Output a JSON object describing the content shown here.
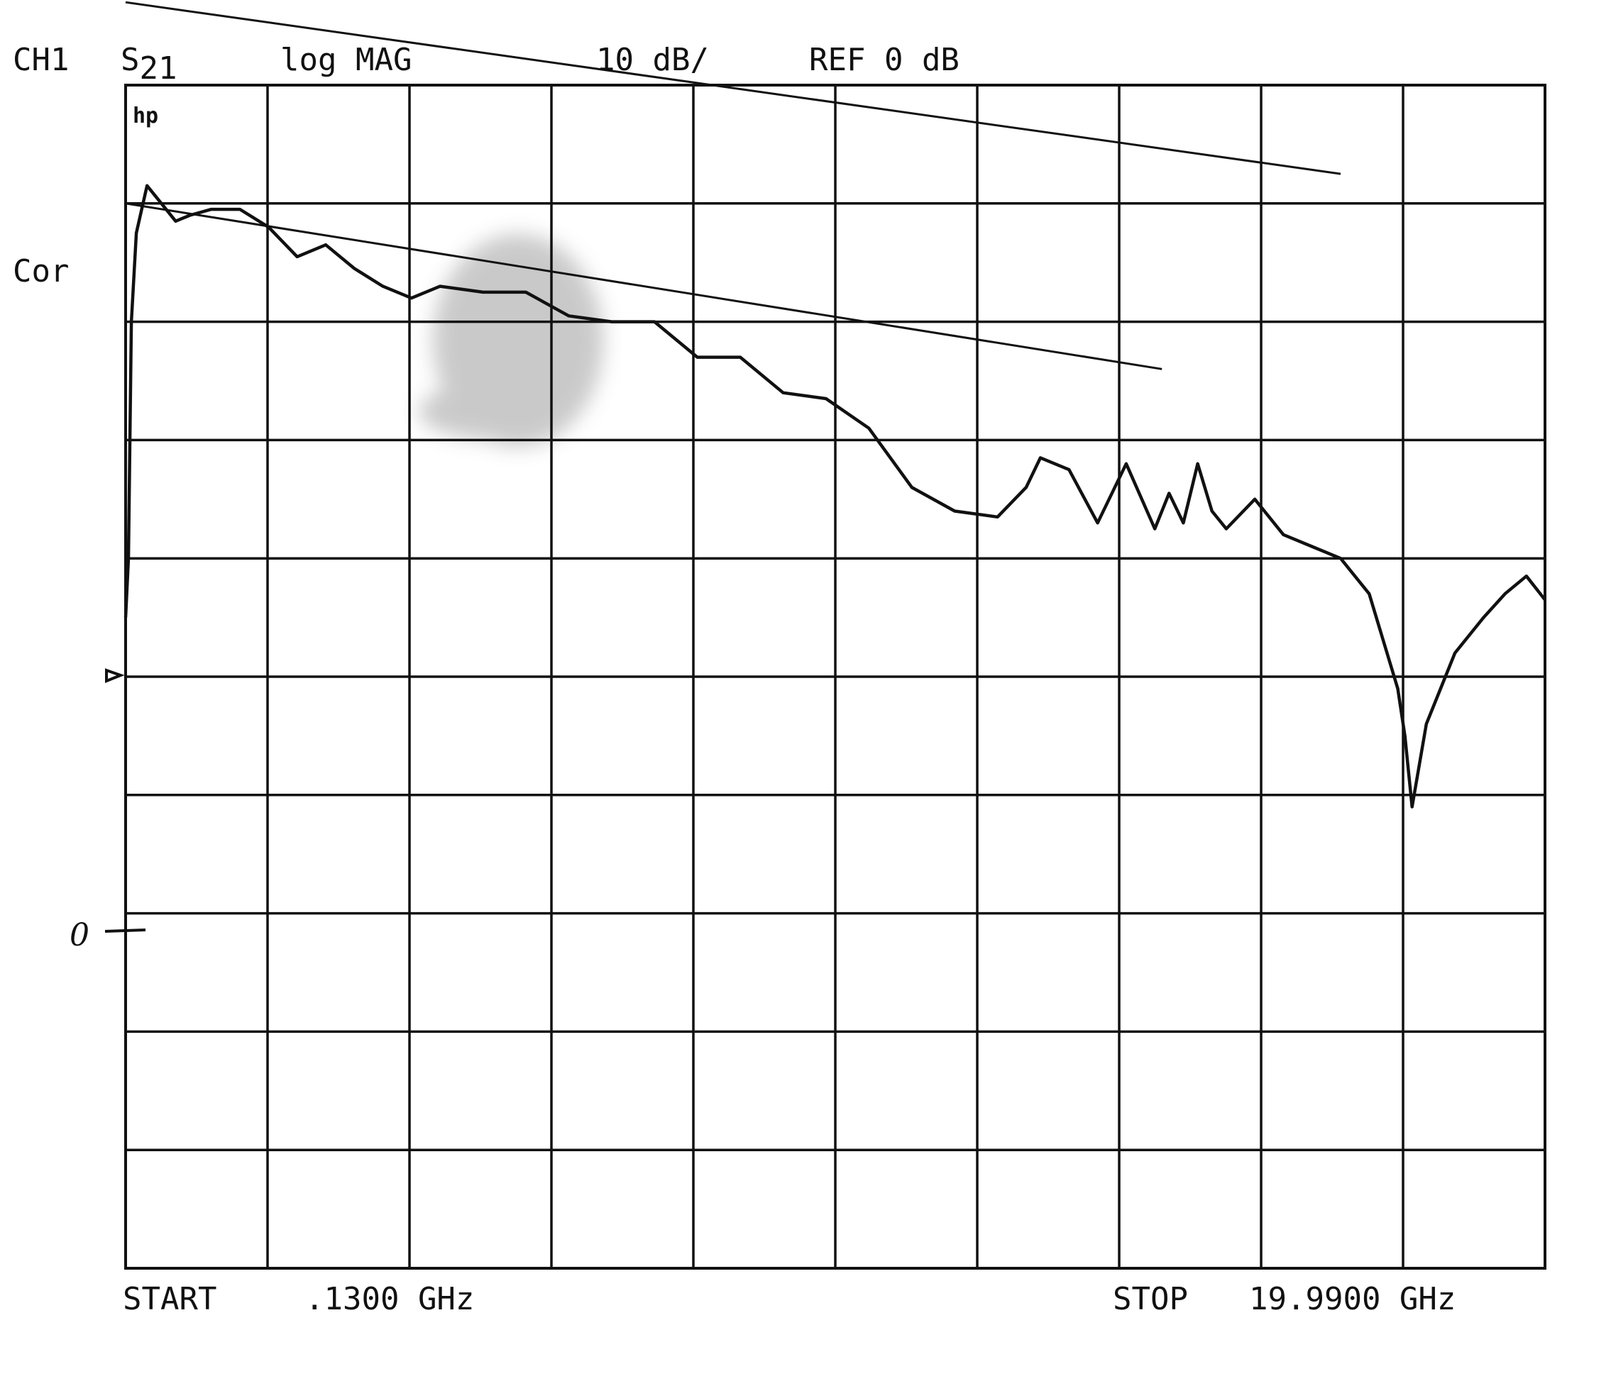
{
  "header": {
    "channel": "CH1",
    "param_main": "S",
    "param_sub": "21",
    "format": "log MAG",
    "scale": "10 dB/",
    "reference": "REF 0 dB"
  },
  "status": {
    "correction": "Cor"
  },
  "logo": "hp",
  "handwritten_zero": "0",
  "footer": {
    "start": "START",
    "start_value": ".1300 GHz",
    "stop": "STOP",
    "stop_value": "19.9900 GHz"
  },
  "colors": {
    "ink": "#111111",
    "background": "#ffffff",
    "smudge": "#8a8a8a"
  },
  "chart_data": {
    "type": "line",
    "title": "",
    "xlabel": "",
    "ylabel": "",
    "x_units": "GHz",
    "y_units": "dB",
    "xlim": [
      0.13,
      19.99
    ],
    "ylim": [
      -70,
      30
    ],
    "x_divisions": 10,
    "y_divisions": 10,
    "reference_level_db": 0,
    "scale_db_per_div": 10,
    "grid": true,
    "legend": "none",
    "series": [
      {
        "x": [
          0.13,
          0.17,
          0.21,
          0.28,
          0.43,
          0.63,
          0.83,
          1.03,
          1.33,
          1.73,
          2.13,
          2.53,
          2.93,
          3.33,
          3.73,
          4.13,
          4.53,
          5.13,
          5.73,
          6.33,
          6.93,
          7.53,
          8.13,
          8.73,
          9.33,
          9.93,
          10.53,
          11.13,
          11.73,
          12.33,
          12.73,
          12.93,
          13.33,
          13.73,
          14.13,
          14.53,
          14.73,
          14.93,
          15.13,
          15.33,
          15.53,
          15.93,
          16.33,
          16.73,
          17.13,
          17.53,
          17.73,
          17.93,
          18.03,
          18.13,
          18.33,
          18.73,
          19.13,
          19.43,
          19.73,
          19.99
        ],
        "y": [
          -15,
          -10,
          10,
          17.5,
          21.5,
          20,
          18.5,
          19,
          19.5,
          19.5,
          18,
          15.5,
          16.5,
          14.5,
          13,
          12,
          13,
          12.5,
          12.5,
          10.5,
          10,
          10,
          7,
          7,
          4,
          3.5,
          1,
          -4,
          -6,
          -6.5,
          -4,
          -1.5,
          -2.5,
          -7,
          -2,
          -7.5,
          -4.5,
          -7,
          -2,
          -6,
          -7.5,
          -5,
          -8,
          -9,
          -10,
          -13,
          -17,
          -21,
          -25,
          -31,
          -24,
          -18,
          -15,
          -13,
          -11.5,
          -13.5
        ]
      },
      {
        "x": [
          0.13,
          14.63
        ],
        "y": [
          20,
          6
        ]
      },
      {
        "x": [
          0.13,
          17.13
        ],
        "y": [
          37,
          22.5
        ]
      }
    ]
  }
}
